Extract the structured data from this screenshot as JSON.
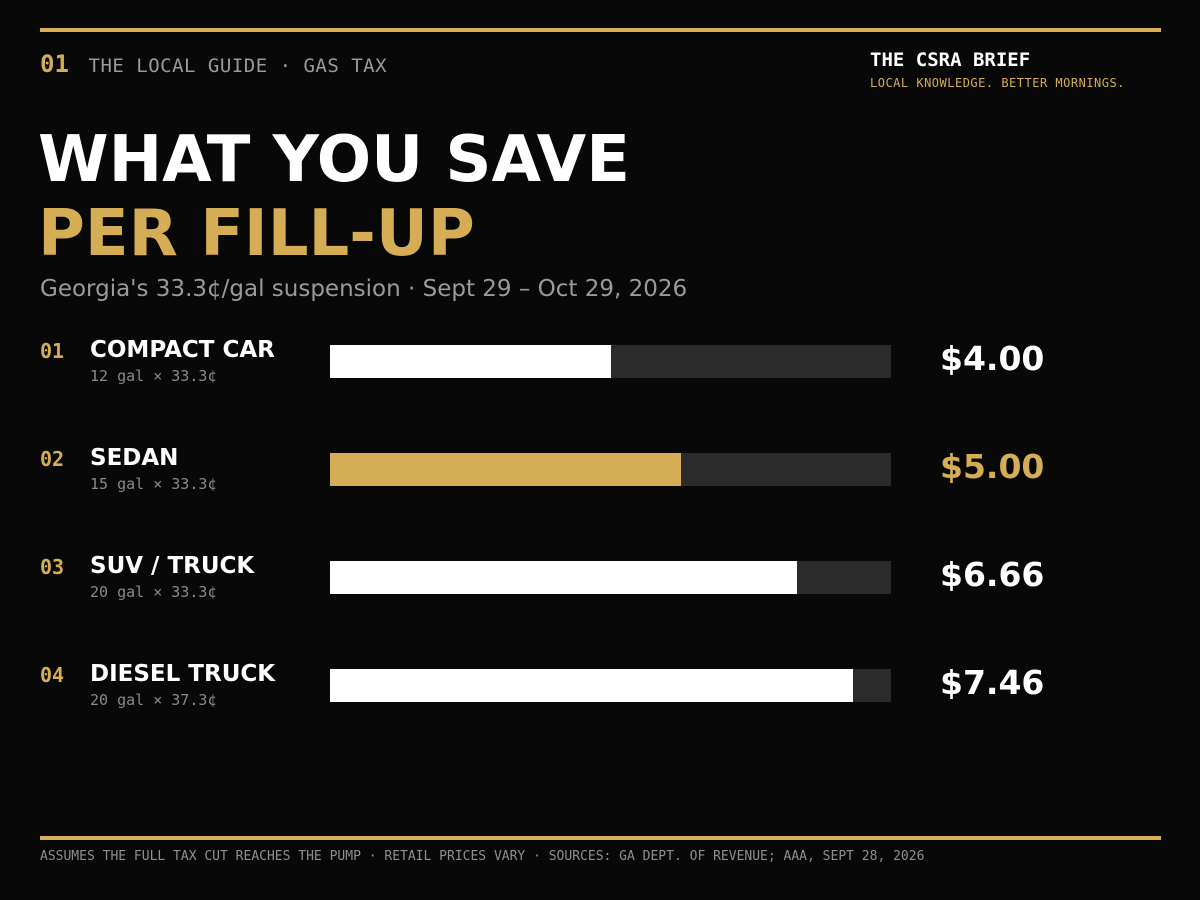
{
  "header": {
    "kicker_num": "01",
    "kicker_text": "THE LOCAL GUIDE · GAS TAX",
    "brand_name": "THE CSRA BRIEF",
    "brand_tagline": "LOCAL KNOWLEDGE. BETTER MORNINGS."
  },
  "colors": {
    "background": "#080808",
    "accent": "#d4ad55",
    "bar": "#ffffff",
    "track": "#2b2b2b",
    "muted": "#9a9a9a"
  },
  "chart_data": {
    "type": "bar",
    "orientation": "horizontal",
    "title": "WHAT YOU SAVE",
    "title_line2": "PER FILL-UP",
    "subtitle": "Georgia's 33.3¢/gal suspension · Sept 29 – Oct 29, 2026",
    "xlim": [
      0,
      8
    ],
    "grid": false,
    "items": [
      {
        "index": "01",
        "label": "COMPACT CAR",
        "note": "12 gal × 33.3¢",
        "value": 4.0,
        "value_label": "$4.00",
        "highlight": false
      },
      {
        "index": "02",
        "label": "SEDAN",
        "note": "15 gal × 33.3¢",
        "value": 5.0,
        "value_label": "$5.00",
        "highlight": true
      },
      {
        "index": "03",
        "label": "SUV / TRUCK",
        "note": "20 gal × 33.3¢",
        "value": 6.66,
        "value_label": "$6.66",
        "highlight": false
      },
      {
        "index": "04",
        "label": "DIESEL TRUCK",
        "note": "20 gal × 37.3¢",
        "value": 7.46,
        "value_label": "$7.46",
        "highlight": false
      }
    ]
  },
  "footer": {
    "note": "ASSUMES THE FULL TAX CUT REACHES THE PUMP · RETAIL PRICES VARY · SOURCES: GA DEPT. OF REVENUE; AAA, SEPT 28, 2026"
  }
}
